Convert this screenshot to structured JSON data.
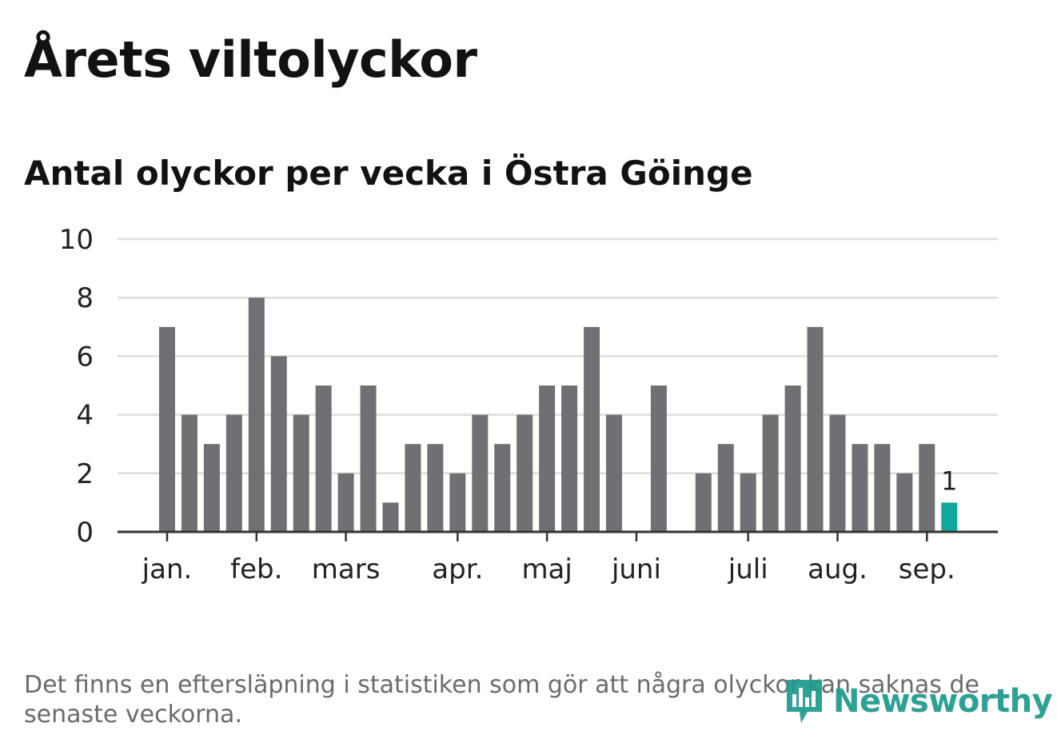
{
  "title": "Årets viltolyckor",
  "subtitle": "Antal olyckor per vecka i Östra Göinge",
  "footnote": "Det finns en eftersläpning i statistiken som gör att några olyckor kan saknas de senaste veckorna.",
  "logo_text": "Newsworthy",
  "colors": {
    "bar": "#6f6f74",
    "highlight": "#0fa89a",
    "grid": "#dddddd",
    "axis": "#333333",
    "text": "#222222",
    "logo": "#1f9a8e"
  },
  "chart_data": {
    "type": "bar",
    "title": "Antal olyckor per vecka i Östra Göinge",
    "xlabel": "",
    "ylabel": "",
    "ylim": [
      0,
      10
    ],
    "yticks": [
      0,
      2,
      4,
      6,
      8,
      10
    ],
    "grid": true,
    "values": [
      7,
      4,
      3,
      4,
      8,
      6,
      4,
      5,
      2,
      5,
      1,
      3,
      3,
      2,
      4,
      3,
      4,
      5,
      5,
      7,
      4,
      0,
      5,
      0,
      2,
      3,
      2,
      4,
      5,
      7,
      4,
      3,
      3,
      2,
      3,
      1
    ],
    "highlight_index": 35,
    "highlight_label": "1",
    "month_labels": [
      {
        "label": "jan.",
        "week_index": 0
      },
      {
        "label": "feb.",
        "week_index": 4
      },
      {
        "label": "mars",
        "week_index": 8
      },
      {
        "label": "apr.",
        "week_index": 13
      },
      {
        "label": "maj",
        "week_index": 17
      },
      {
        "label": "juni",
        "week_index": 21
      },
      {
        "label": "juli",
        "week_index": 26
      },
      {
        "label": "aug.",
        "week_index": 30
      },
      {
        "label": "sep.",
        "week_index": 34
      }
    ]
  }
}
